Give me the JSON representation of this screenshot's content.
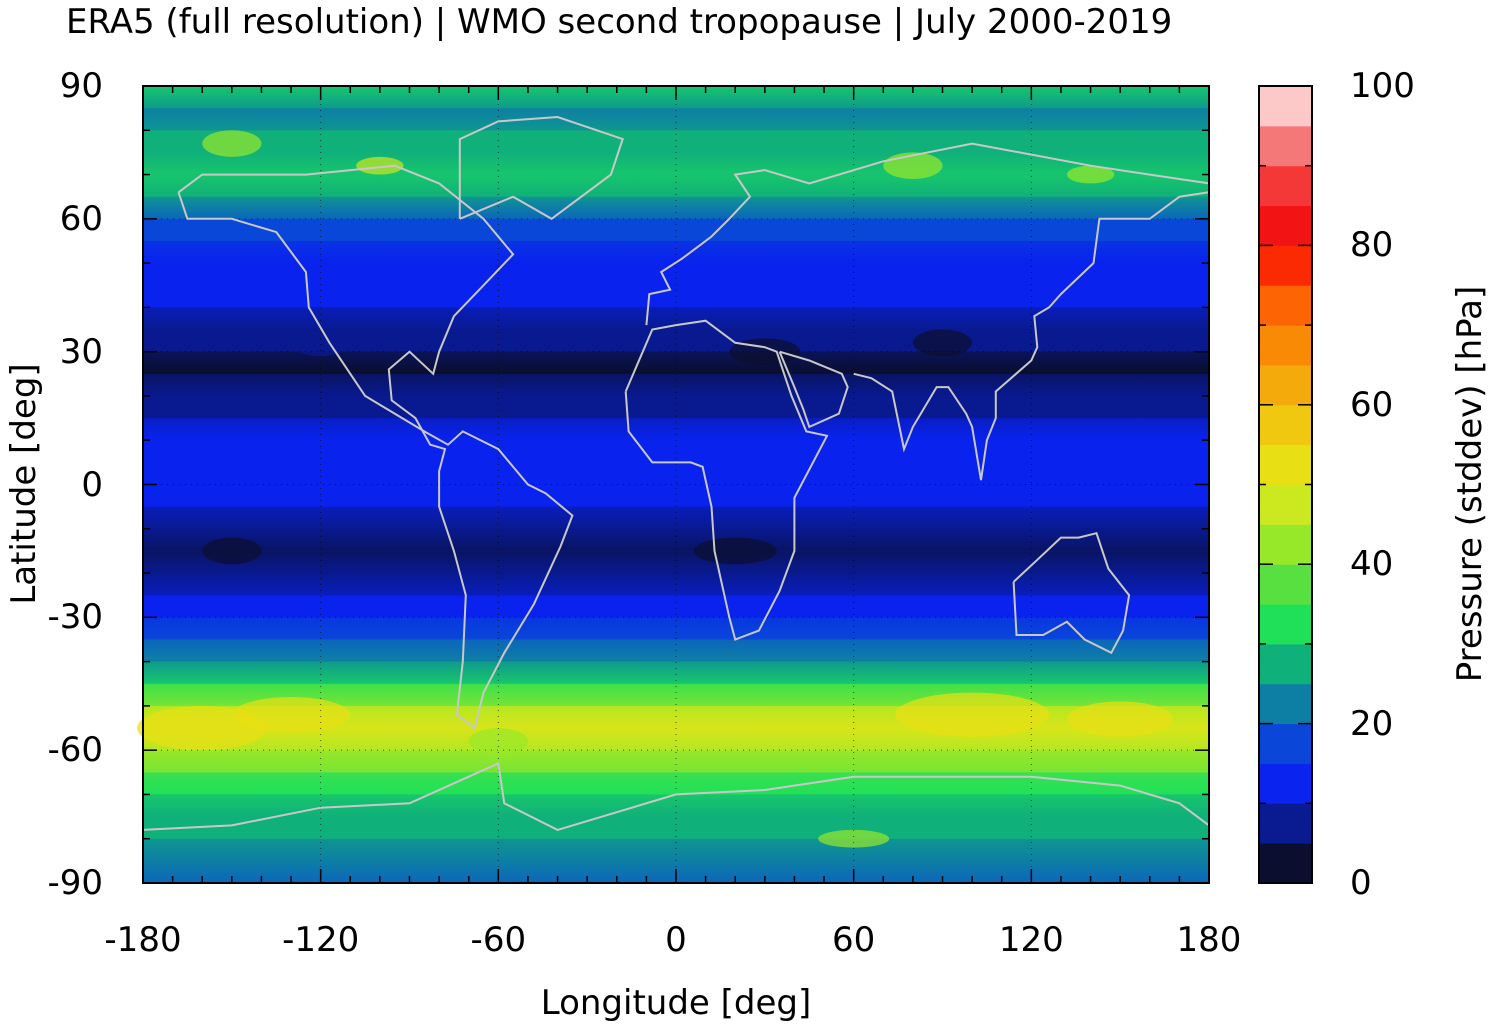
{
  "title": "ERA5 (full resolution) | WMO second tropopause | July 2000-2019",
  "map": {
    "x_axis": {
      "label": "Longitude [deg]",
      "ticks": [
        "-180",
        "-120",
        "-60",
        "0",
        "60",
        "120",
        "180"
      ],
      "range": [
        -180,
        180
      ]
    },
    "y_axis": {
      "label": "Latitude [deg]",
      "ticks": [
        "90",
        "60",
        "30",
        "0",
        "-30",
        "-60",
        "-90"
      ],
      "range": [
        -90,
        90
      ]
    },
    "grid": "dotted",
    "coastlines": "gray"
  },
  "colorbar": {
    "label": "Pressure (stddev) [hPa]",
    "ticks": [
      "100",
      "80",
      "60",
      "40",
      "20",
      "0"
    ],
    "range": [
      0,
      100
    ],
    "step": 5,
    "colors": [
      "#0b0e2e",
      "#0a1a90",
      "#0a23ee",
      "#0a47d8",
      "#0e7fa4",
      "#10b07a",
      "#20e05a",
      "#58e040",
      "#98e82a",
      "#cce81e",
      "#e8e014",
      "#f0c810",
      "#f4aa0a",
      "#f88a06",
      "#fc6404",
      "#fc2a02",
      "#f21414",
      "#f43838",
      "#f47878",
      "#fcc8c8"
    ]
  },
  "chart_data": {
    "type": "heatmap",
    "title": "ERA5 (full resolution) | WMO second tropopause | July 2000-2019",
    "xlabel": "Longitude [deg]",
    "ylabel": "Latitude [deg]",
    "xlim": [
      -180,
      180
    ],
    "ylim": [
      -90,
      90
    ],
    "colorbar_label": "Pressure (stddev) [hPa]",
    "colorbar_range": [
      0,
      100
    ],
    "zonal_profile": {
      "lat": [
        90,
        85,
        80,
        75,
        70,
        65,
        60,
        55,
        50,
        45,
        40,
        35,
        30,
        25,
        20,
        15,
        10,
        5,
        0,
        -5,
        -10,
        -15,
        -20,
        -25,
        -30,
        -35,
        -40,
        -45,
        -50,
        -55,
        -60,
        -65,
        -70,
        -75,
        -80,
        -85,
        -90
      ],
      "stddev_hPa": [
        30,
        22,
        25,
        28,
        30,
        25,
        18,
        15,
        13,
        12,
        10,
        8,
        5,
        4,
        7,
        9,
        11,
        12,
        13,
        10,
        6,
        4,
        6,
        10,
        14,
        18,
        24,
        32,
        42,
        50,
        44,
        36,
        30,
        28,
        26,
        22,
        18
      ]
    }
  }
}
